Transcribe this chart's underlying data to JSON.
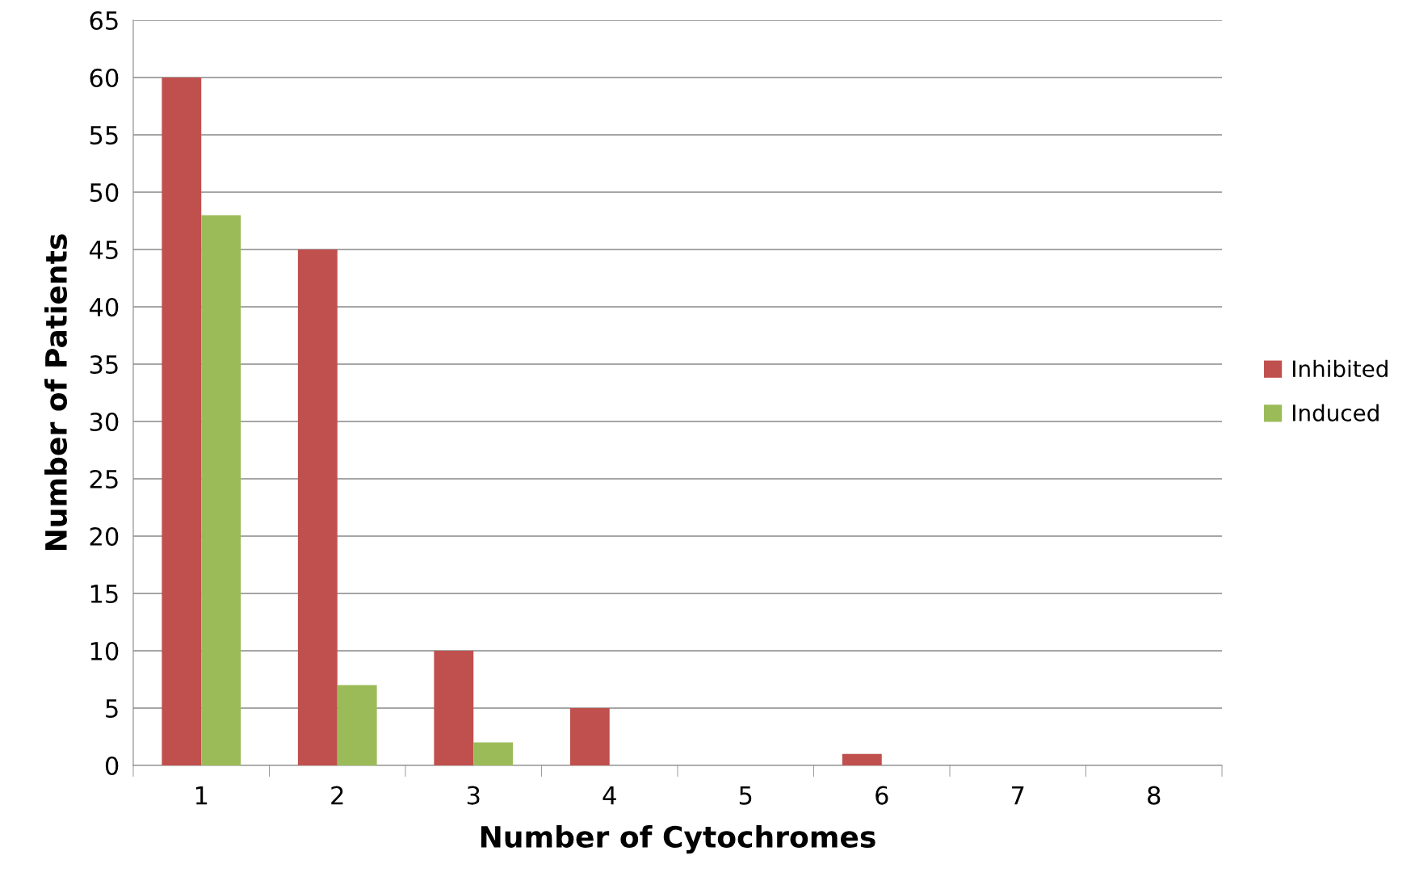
{
  "chart_data": {
    "type": "bar",
    "xlabel": "Number of Cytochromes",
    "ylabel": "Number of Patients",
    "categories": [
      "1",
      "2",
      "3",
      "4",
      "5",
      "6",
      "7",
      "8"
    ],
    "series": [
      {
        "name": "Inhibited",
        "color": "#c0504d",
        "values": [
          60,
          45,
          10,
          5,
          0,
          1,
          0,
          0
        ]
      },
      {
        "name": "Induced",
        "color": "#9bbb59",
        "values": [
          48,
          7,
          2,
          0,
          0,
          0,
          0,
          0
        ]
      }
    ],
    "ylim": [
      0,
      65
    ],
    "yticks": [
      0,
      5,
      10,
      15,
      20,
      25,
      30,
      35,
      40,
      45,
      50,
      55,
      60,
      65
    ],
    "grid": "y",
    "legend": "right"
  }
}
